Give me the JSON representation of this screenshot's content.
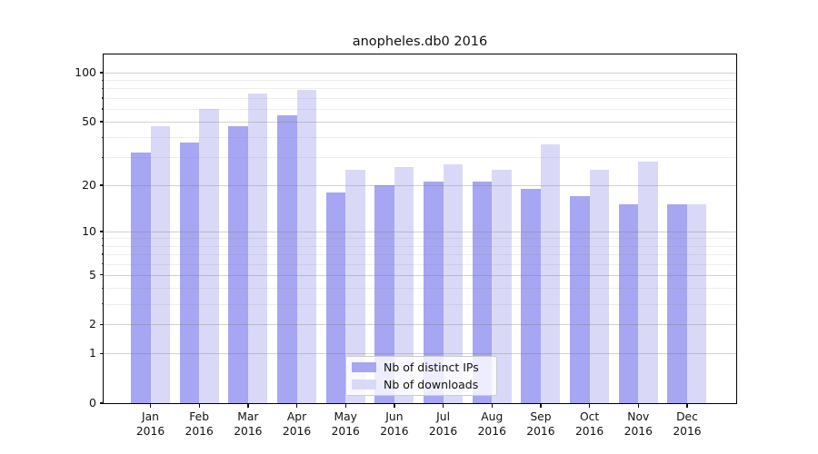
{
  "chart_data": {
    "type": "bar",
    "title": "anopheles.db0 2016",
    "categories": [
      "Jan",
      "Feb",
      "Mar",
      "Apr",
      "May",
      "Jun",
      "Jul",
      "Aug",
      "Sep",
      "Oct",
      "Nov",
      "Dec"
    ],
    "category_year": "2016",
    "series": [
      {
        "name": "Nb of distinct IPs",
        "color": "#a6a6f2",
        "values": [
          32,
          37,
          47,
          55,
          18,
          20,
          21,
          21,
          19,
          17,
          15,
          15
        ]
      },
      {
        "name": "Nb of downloads",
        "color": "#d9d9f7",
        "values": [
          47,
          60,
          74,
          78,
          25,
          26,
          27,
          25,
          36,
          25,
          28,
          15
        ]
      }
    ],
    "yscale": "log1p",
    "y_ticks": [
      0,
      1,
      2,
      5,
      10,
      20,
      50,
      100
    ],
    "y_minor_ticks": [
      3,
      4,
      6,
      7,
      8,
      9,
      30,
      40,
      60,
      70,
      80,
      90
    ],
    "ylim": [
      0,
      130
    ],
    "grid": true,
    "legend_position": "lower center"
  },
  "colors": {
    "background": "#ffffff",
    "spine": "#000000",
    "text": "#111111",
    "major_grid": "#d2d2d2",
    "minor_grid": "#ededed"
  }
}
